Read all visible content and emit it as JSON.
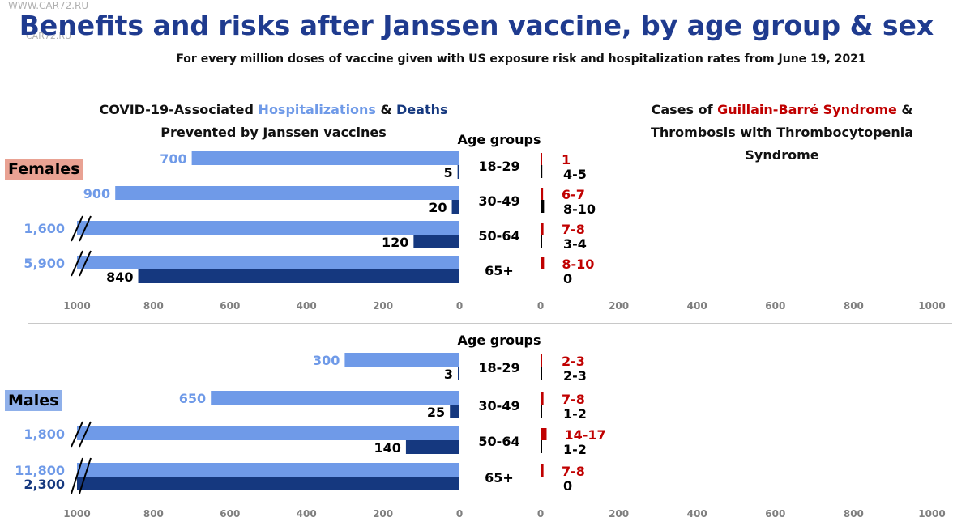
{
  "header": {
    "watermark": "WWW.CAR72.RU",
    "watermark_small": "CAR72.RU",
    "title": "Benefits and risks after Janssen vaccine, by age group & sex",
    "subtitle": "For every million doses of vaccine given with US exposure risk and hospitalization rates from June 19, 2021"
  },
  "left_heading": {
    "line1_prefix": "COVID-19-Associated ",
    "line1_hosp": "Hospitalizations",
    "line1_amp": " & ",
    "line1_death": "Deaths",
    "line2": "Prevented by Janssen vaccines"
  },
  "right_heading": {
    "line1_prefix": "Cases of ",
    "line1_gbs": "Guillain-Barré Syndrome",
    "line1_suffix": " &",
    "line2": "Thrombosis with Thrombocytopenia",
    "line3": "Syndrome"
  },
  "age_groups_label": "Age groups",
  "group_labels": {
    "females": "Females",
    "males": "Males"
  },
  "colors": {
    "hospitalizations": "#6f9ae8",
    "deaths": "#15387f",
    "gbs": "#c00000",
    "tts": "#000000"
  },
  "chart_data": [
    {
      "type": "bar",
      "panel": "Females",
      "categories": [
        "18-29",
        "30-49",
        "50-64",
        "65+"
      ],
      "benefits_axis": {
        "range": [
          1000,
          0
        ],
        "ticks": [
          "1000",
          "800",
          "600",
          "400",
          "200",
          "0"
        ]
      },
      "risks_axis": {
        "range": [
          0,
          1000
        ],
        "ticks": [
          "0",
          "200",
          "400",
          "600",
          "800",
          "1000"
        ]
      },
      "series": [
        {
          "name": "Hospitalizations",
          "values": [
            700,
            900,
            1600,
            5900
          ],
          "labels": [
            "700",
            "900",
            "1,600",
            "5,900"
          ],
          "truncated": [
            false,
            false,
            true,
            true
          ]
        },
        {
          "name": "Deaths",
          "values": [
            5,
            20,
            120,
            840
          ],
          "labels": [
            "5",
            "20",
            "120",
            "840"
          ],
          "truncated": [
            false,
            false,
            false,
            false
          ]
        },
        {
          "name": "Guillain-Barré Syndrome",
          "values": [
            1,
            6.5,
            7.5,
            9
          ],
          "labels": [
            "1",
            "6-7",
            "7-8",
            "8-10"
          ]
        },
        {
          "name": "Thrombosis with Thrombocytopenia Syndrome",
          "values": [
            4.5,
            9,
            3.5,
            0
          ],
          "labels": [
            "4-5",
            "8-10",
            "3-4",
            "0"
          ]
        }
      ]
    },
    {
      "type": "bar",
      "panel": "Males",
      "categories": [
        "18-29",
        "30-49",
        "50-64",
        "65+"
      ],
      "benefits_axis": {
        "range": [
          1000,
          0
        ],
        "ticks": [
          "1000",
          "800",
          "600",
          "400",
          "200",
          "0"
        ]
      },
      "risks_axis": {
        "range": [
          0,
          1000
        ],
        "ticks": [
          "0",
          "200",
          "400",
          "600",
          "800",
          "1000"
        ]
      },
      "series": [
        {
          "name": "Hospitalizations",
          "values": [
            300,
            650,
            1800,
            11800
          ],
          "labels": [
            "300",
            "650",
            "1,800",
            "11,800"
          ],
          "truncated": [
            false,
            false,
            true,
            true
          ]
        },
        {
          "name": "Deaths",
          "values": [
            3,
            25,
            140,
            2300
          ],
          "labels": [
            "3",
            "25",
            "140",
            "2,300"
          ],
          "truncated": [
            false,
            false,
            false,
            true
          ]
        },
        {
          "name": "Guillain-Barré Syndrome",
          "values": [
            2.5,
            7.5,
            15.5,
            7.5
          ],
          "labels": [
            "2-3",
            "7-8",
            "14-17",
            "7-8"
          ]
        },
        {
          "name": "Thrombosis with Thrombocytopenia Syndrome",
          "values": [
            2.5,
            1.5,
            1.5,
            0
          ],
          "labels": [
            "2-3",
            "1-2",
            "1-2",
            "0"
          ]
        }
      ]
    }
  ]
}
